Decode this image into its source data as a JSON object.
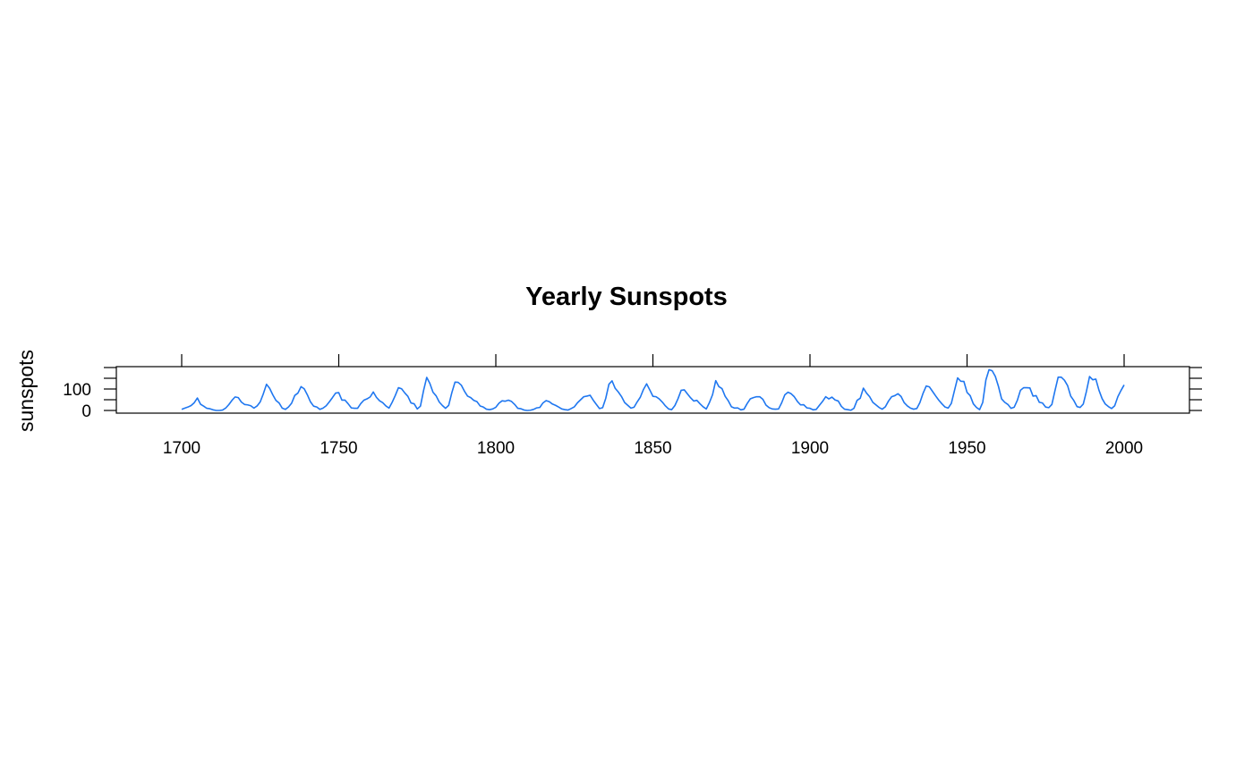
{
  "chart_data": {
    "type": "line",
    "title": "Yearly Sunspots",
    "xlabel": "",
    "ylabel": "sunspots",
    "xlim": [
      1700,
      2000
    ],
    "ylim": [
      0,
      190
    ],
    "x_ticks": [
      1700,
      1750,
      1800,
      1850,
      1900,
      1950,
      2000
    ],
    "x_tick_labels": [
      "1700",
      "1750",
      "1800",
      "1850",
      "1900",
      "1950",
      "2000"
    ],
    "y_ticks": [
      0,
      50,
      100,
      150,
      200
    ],
    "y_tick_labels": [
      "0",
      "100"
    ],
    "y_label_values": [
      0,
      100
    ],
    "grid": false,
    "series": [
      {
        "name": "sunspots",
        "color": "#1f77f0",
        "x_start": 1700,
        "x_step": 1,
        "values": [
          5,
          11,
          16,
          23,
          36,
          58,
          29,
          20,
          10,
          8,
          3,
          0,
          0,
          2,
          11,
          27,
          47,
          63,
          60,
          39,
          28,
          26,
          22,
          11,
          21,
          40,
          78,
          122,
          103,
          73,
          47,
          35,
          11,
          5,
          16,
          34,
          70,
          81,
          111,
          101,
          73,
          40,
          20,
          16,
          5,
          11,
          22,
          40,
          60,
          81,
          83,
          48,
          48,
          31,
          12,
          10,
          10,
          32,
          48,
          54,
          63,
          86,
          61,
          45,
          36,
          21,
          11,
          38,
          70,
          106,
          101,
          82,
          66,
          35,
          31,
          7,
          20,
          93,
          154,
          126,
          85,
          68,
          39,
          23,
          10,
          24,
          83,
          132,
          131,
          118,
          90,
          67,
          60,
          47,
          41,
          21,
          16,
          6,
          4,
          7,
          15,
          34,
          45,
          43,
          48,
          42,
          28,
          10,
          8,
          2,
          0,
          1,
          5,
          12,
          14,
          35,
          46,
          41,
          30,
          24,
          16,
          7,
          4,
          2,
          9,
          17,
          36,
          50,
          64,
          67,
          71,
          48,
          28,
          9,
          13,
          57,
          122,
          138,
          103,
          86,
          65,
          37,
          24,
          11,
          15,
          40,
          62,
          98,
          124,
          96,
          66,
          64,
          54,
          39,
          21,
          7,
          4,
          23,
          55,
          94,
          96,
          77,
          59,
          44,
          47,
          31,
          17,
          7,
          37,
          74,
          139,
          111,
          102,
          66,
          45,
          17,
          11,
          12,
          3,
          6,
          32,
          54,
          60,
          64,
          64,
          52,
          25,
          13,
          7,
          6,
          7,
          36,
          73,
          85,
          78,
          64,
          42,
          26,
          27,
          12,
          10,
          3,
          5,
          24,
          42,
          64,
          54,
          62,
          49,
          44,
          19,
          6,
          4,
          1,
          10,
          47,
          57,
          104,
          81,
          64,
          38,
          26,
          14,
          6,
          17,
          44,
          64,
          69,
          78,
          65,
          36,
          21,
          11,
          6,
          9,
          37,
          80,
          114,
          110,
          89,
          68,
          48,
          31,
          16,
          11,
          33,
          93,
          152,
          136,
          135,
          84,
          69,
          31,
          14,
          4,
          38,
          142,
          190,
          185,
          159,
          112,
          54,
          38,
          28,
          10,
          15,
          47,
          94,
          106,
          106,
          105,
          67,
          69,
          38,
          35,
          16,
          13,
          28,
          93,
          155,
          155,
          141,
          116,
          67,
          46,
          18,
          14,
          30,
          89,
          158,
          143,
          146,
          94,
          55,
          30,
          18,
          9,
          22,
          64,
          93,
          119
        ]
      }
    ]
  }
}
